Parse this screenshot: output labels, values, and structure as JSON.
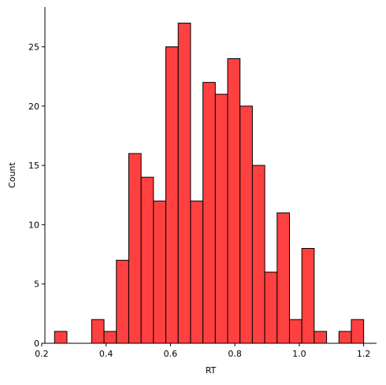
{
  "chart_data": {
    "type": "bar",
    "subtype": "histogram",
    "title": "",
    "xlabel": "RT",
    "ylabel": "Count",
    "bin_start": 0.24,
    "bin_width": 0.0384,
    "counts": [
      1,
      0,
      0,
      2,
      1,
      7,
      16,
      14,
      12,
      25,
      27,
      12,
      22,
      21,
      24,
      20,
      15,
      6,
      11,
      2,
      8,
      1,
      0,
      1,
      2
    ],
    "xlim": [
      0.21,
      1.24
    ],
    "ylim": [
      0,
      28.35
    ],
    "xticks": [
      0.2,
      0.4,
      0.6,
      0.8,
      1.0,
      1.2
    ],
    "xtick_labels": [
      "0.2",
      "0.4",
      "0.6",
      "0.8",
      "1.0",
      "1.2"
    ],
    "yticks": [
      0,
      5,
      10,
      15,
      20,
      25
    ],
    "ytick_labels": [
      "0",
      "5",
      "10",
      "15",
      "20",
      "25"
    ],
    "bar_color": "#ff4040",
    "edge_color": "#000000",
    "grid": false,
    "legend": "none"
  }
}
